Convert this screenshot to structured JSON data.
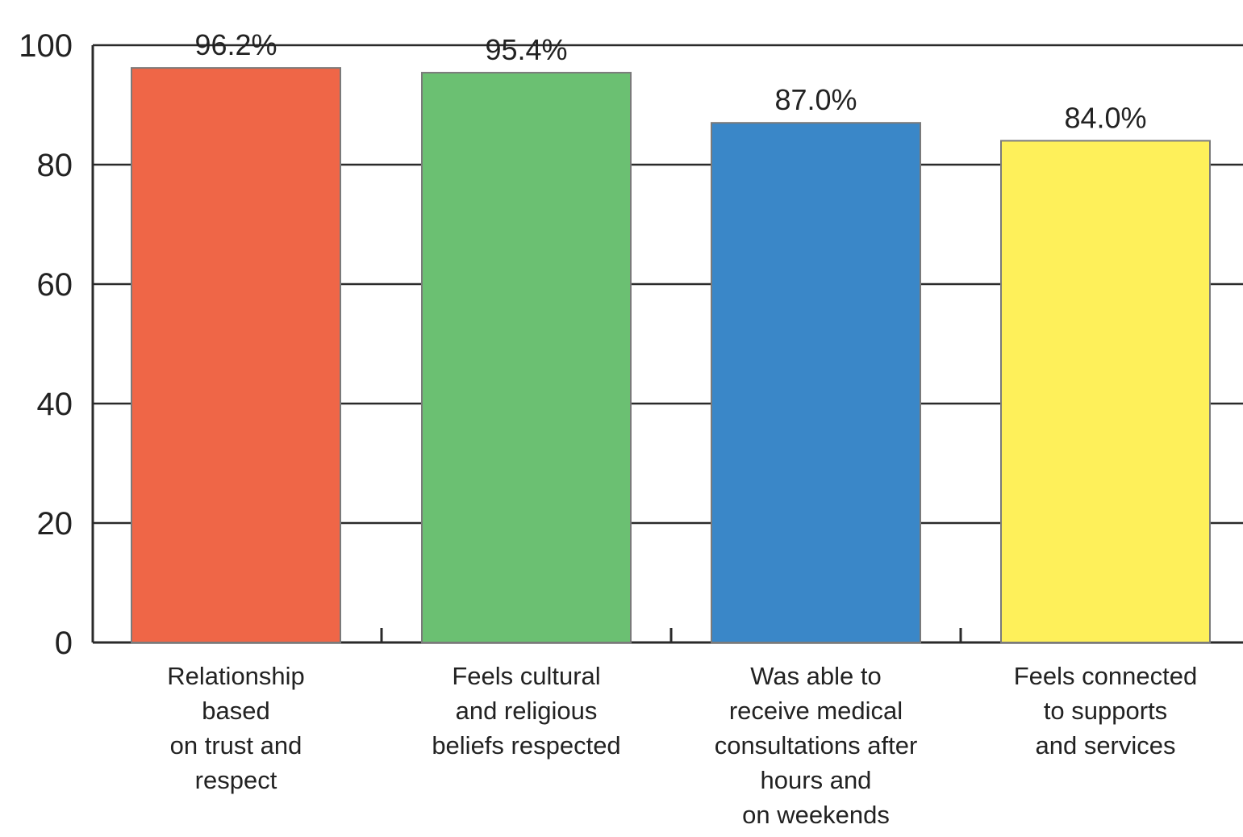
{
  "chart_data": {
    "type": "bar",
    "title": "",
    "xlabel": "",
    "ylabel": "",
    "ylim": [
      0,
      100
    ],
    "yticks": [
      0,
      20,
      40,
      60,
      80,
      100
    ],
    "grid": "horizontal",
    "legend": "none",
    "categories": [
      "Relationship based on trust and respect",
      "Feels cultural and religious beliefs respected",
      "Was able to receive medical consultations after hours and on weekends",
      "Feels connected to supports and services"
    ],
    "category_label_lines": [
      [
        "Relationship",
        "based",
        "on trust and",
        "respect"
      ],
      [
        "Feels cultural",
        "and religious",
        "beliefs respected"
      ],
      [
        "Was able to",
        "receive medical",
        "consultations after",
        "hours and",
        "on weekends"
      ],
      [
        "Feels connected",
        "to supports",
        "and services"
      ]
    ],
    "values": [
      96.2,
      95.4,
      87.0,
      84.0
    ],
    "value_labels": [
      "96.2%",
      "95.4%",
      "87.0%",
      "84.0%"
    ],
    "colors": [
      "#EF6647",
      "#6BC072",
      "#3A87C8",
      "#FEF05A"
    ]
  }
}
